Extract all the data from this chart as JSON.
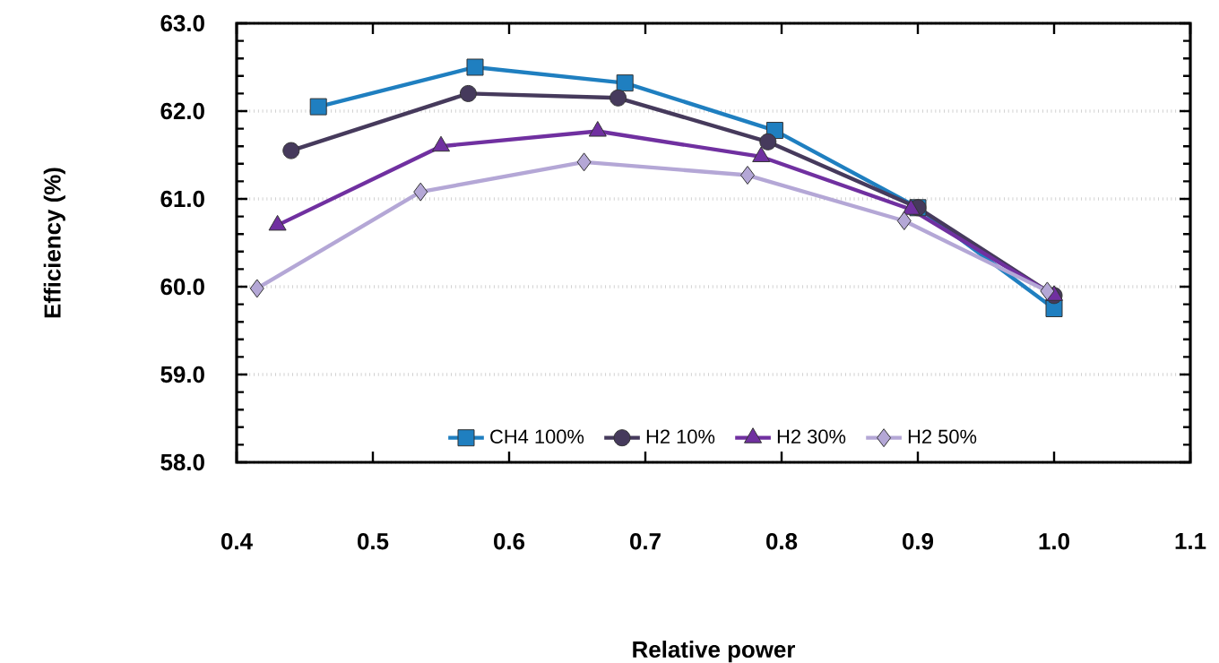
{
  "chart_data": {
    "type": "line",
    "xlabel": "Relative power",
    "ylabel": "Efficiency (%)",
    "xlim": [
      0.4,
      1.1
    ],
    "ylim": [
      58.0,
      63.0
    ],
    "xticks": [
      {
        "value": 0.4,
        "label": "0.4"
      },
      {
        "value": 0.5,
        "label": "0.5"
      },
      {
        "value": 0.6,
        "label": "0.6"
      },
      {
        "value": 0.7,
        "label": "0.7"
      },
      {
        "value": 0.8,
        "label": "0.8"
      },
      {
        "value": 0.9,
        "label": "0.9"
      },
      {
        "value": 1.0,
        "label": "1.0"
      },
      {
        "value": 1.1,
        "label": "1.1"
      }
    ],
    "yticks": [
      {
        "value": 58,
        "label": "58.0"
      },
      {
        "value": 59,
        "label": "59.0"
      },
      {
        "value": 60,
        "label": "60.0"
      },
      {
        "value": 61,
        "label": "61.0"
      },
      {
        "value": 62,
        "label": "62.0"
      },
      {
        "value": 63,
        "label": "63.0"
      }
    ],
    "grid": "y",
    "legend": "bottom",
    "line_style": "solid",
    "series": [
      {
        "name": "CH4 100%",
        "color": "#1f7fc0",
        "marker": "square",
        "x": [
          0.46,
          0.575,
          0.685,
          0.795,
          0.9,
          1.0
        ],
        "values": [
          62.05,
          62.5,
          62.32,
          61.78,
          60.9,
          59.75
        ]
      },
      {
        "name": "H2 10%",
        "color": "#463a5c",
        "marker": "circle",
        "x": [
          0.44,
          0.57,
          0.68,
          0.79,
          0.9,
          1.0
        ],
        "values": [
          61.55,
          62.2,
          62.15,
          61.65,
          60.9,
          59.9
        ]
      },
      {
        "name": "H2 30%",
        "color": "#7030a0",
        "marker": "triangle",
        "x": [
          0.43,
          0.55,
          0.665,
          0.785,
          0.895,
          1.0
        ],
        "values": [
          60.7,
          61.6,
          61.77,
          61.48,
          60.88,
          59.9
        ]
      },
      {
        "name": "H2 50%",
        "color": "#b4a7d6",
        "marker": "diamond",
        "x": [
          0.415,
          0.535,
          0.655,
          0.775,
          0.89,
          0.995
        ],
        "values": [
          59.98,
          61.08,
          61.42,
          61.27,
          60.75,
          59.95
        ]
      }
    ]
  }
}
